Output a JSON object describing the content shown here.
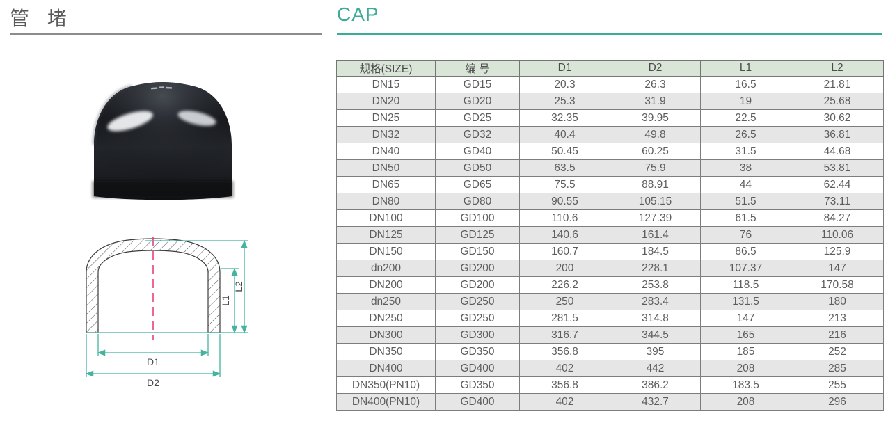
{
  "header": {
    "title_cn": "管 堵",
    "title_en": "CAP",
    "accent_color": "#3dab97"
  },
  "table": {
    "headers": [
      "规格(SIZE)",
      "编 号",
      "D1",
      "D2",
      "L1",
      "L2"
    ],
    "rows": [
      [
        "DN15",
        "GD15",
        "20.3",
        "26.3",
        "16.5",
        "21.81"
      ],
      [
        "DN20",
        "GD20",
        "25.3",
        "31.9",
        "19",
        "25.68"
      ],
      [
        "DN25",
        "GD25",
        "32.35",
        "39.95",
        "22.5",
        "30.62"
      ],
      [
        "DN32",
        "GD32",
        "40.4",
        "49.8",
        "26.5",
        "36.81"
      ],
      [
        "DN40",
        "GD40",
        "50.45",
        "60.25",
        "31.5",
        "44.68"
      ],
      [
        "DN50",
        "GD50",
        "63.5",
        "75.9",
        "38",
        "53.81"
      ],
      [
        "DN65",
        "GD65",
        "75.5",
        "88.91",
        "44",
        "62.44"
      ],
      [
        "DN80",
        "GD80",
        "90.55",
        "105.15",
        "51.5",
        "73.11"
      ],
      [
        "DN100",
        "GD100",
        "110.6",
        "127.39",
        "61.5",
        "84.27"
      ],
      [
        "DN125",
        "GD125",
        "140.6",
        "161.4",
        "76",
        "110.06"
      ],
      [
        "DN150",
        "GD150",
        "160.7",
        "184.5",
        "86.5",
        "125.9"
      ],
      [
        "dn200",
        "GD200",
        "200",
        "228.1",
        "107.37",
        "147"
      ],
      [
        "DN200",
        "GD200",
        "226.2",
        "253.8",
        "118.5",
        "170.58"
      ],
      [
        "dn250",
        "GD250",
        "250",
        "283.4",
        "131.5",
        "180"
      ],
      [
        "DN250",
        "GD250",
        "281.5",
        "314.8",
        "147",
        "213"
      ],
      [
        "DN300",
        "GD300",
        "316.7",
        "344.5",
        "165",
        "216"
      ],
      [
        "DN350",
        "GD350",
        "356.8",
        "395",
        "185",
        "252"
      ],
      [
        "DN400",
        "GD400",
        "402",
        "442",
        "208",
        "285"
      ],
      [
        "DN350(PN10)",
        "GD350",
        "356.8",
        "386.2",
        "183.5",
        "255"
      ],
      [
        "DN400(PN10)",
        "GD400",
        "402",
        "432.7",
        "208",
        "296"
      ]
    ],
    "header_bg": "#d9e5d7",
    "alt_row_bg": "#e6e6e6"
  },
  "diagram": {
    "labels": {
      "d1": "D1",
      "d2": "D2",
      "l1": "L1",
      "l2": "L2"
    },
    "dimension_line_color": "#45b39e",
    "centerline_color": "#e8417e"
  },
  "photo": {
    "description": "black-pipe-cap"
  }
}
